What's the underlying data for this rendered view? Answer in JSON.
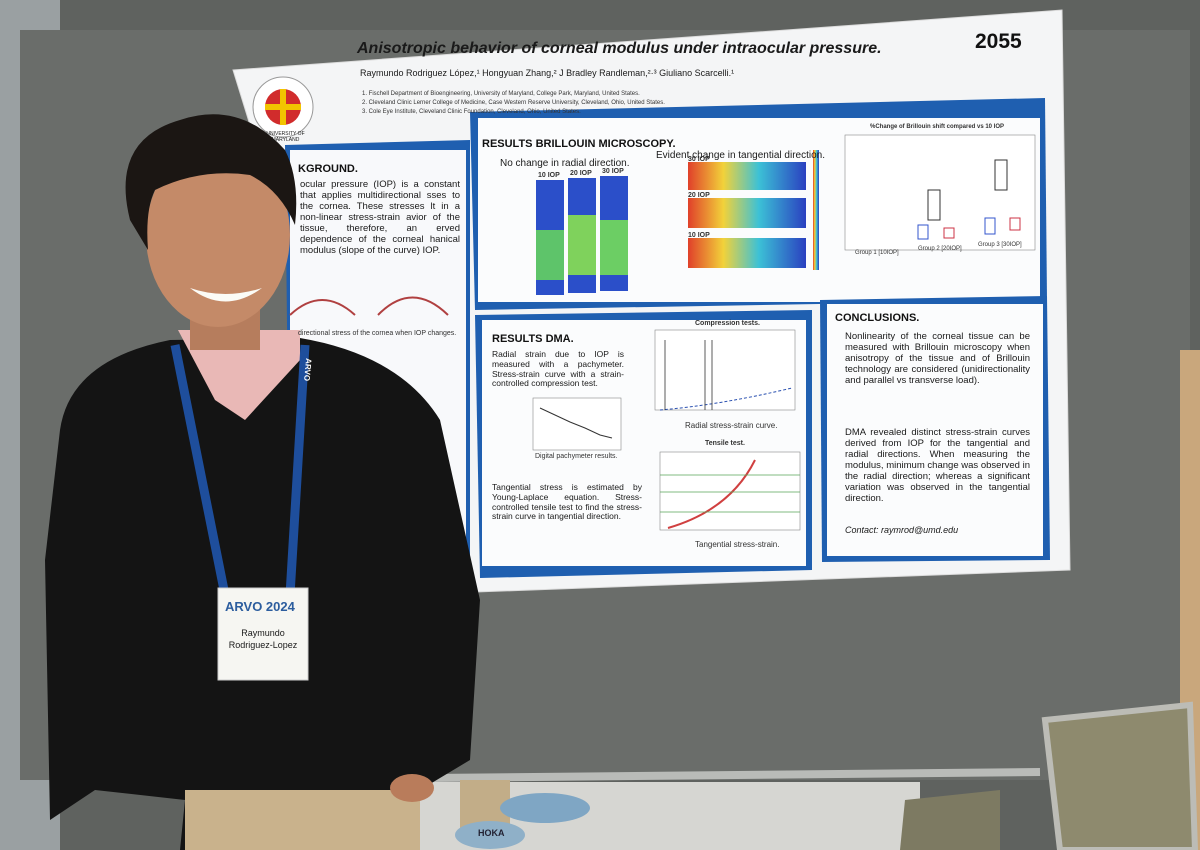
{
  "poster": {
    "number": "2055",
    "title": "Anisotropic behavior of corneal modulus under intraocular pressure.",
    "authors": "Raymundo Rodriguez López,¹ Hongyuan Zhang,² J Bradley Randleman,²·³ Giuliano Scarcelli.¹",
    "affiliations": [
      "1.  Fischell Department of Bioengineering, University of Maryland, College Park, Maryland, United States.",
      "2.  Cleveland Clinic Lerner College of Medicine, Case Western Reserve University, Cleveland, Ohio, United States.",
      "3.  Cole Eye Institute, Cleveland Clinic Foundation, Cleveland, Ohio, United States."
    ],
    "logo": "UNIVERSITY OF MARYLAND",
    "background": {
      "heading": "KGROUND.",
      "text": "ocular pressure (IOP) is a constant that applies multidirectional sses to the cornea. These stresses lt in a non-linear stress-strain avior of the tissue, therefore, an erved dependence of the corneal hanical modulus (slope of the curve) IOP.",
      "caption": "directional stress of the cornea when IOP changes."
    },
    "brillouin": {
      "heading": "RESULTS BRILLOUIN MICROSCOPY.",
      "radial": "No change in radial direction.",
      "tangential": "Evident change in tangential direction.",
      "iop_labels": [
        "10 IOP",
        "20 IOP",
        "30 IOP"
      ],
      "chart_title": "%Change of Brillouin shift compared vs 10 IOP",
      "groups": [
        "Group 1 [10IOP]",
        "Group 2 [20IOP]",
        "Group 3 [30IOP]"
      ]
    },
    "dma": {
      "heading": "RESULTS DMA.",
      "bullet1": "Radial strain due to IOP is measured with a pachymeter. Stress-strain curve with a strain-controlled compression test.",
      "pachymeter": "Digital pachymeter results.",
      "compression": "Compression tests.",
      "radial_curve": "Radial stress-strain curve.",
      "tensile": "Tensile test.",
      "tangential_curve": "Tangential stress-strain.",
      "bullet2": "Tangential stress is estimated by Young-Laplace equation. Stress-controlled tensile test to find the stress-strain curve in tangential direction."
    },
    "conclusions": {
      "heading": "CONCLUSIONS.",
      "bullets": [
        "Nonlinearity of the corneal tissue can be measured with Brillouin microscopy when anisotropy of the tissue and of Brillouin technology are considered (unidirectionality and parallel vs transverse load).",
        "DMA revealed distinct stress-strain curves derived from IOP for the tangential and radial directions. When measuring the modulus, minimum change was observed in the radial direction; whereas a significant variation was observed in the tangential direction."
      ],
      "contact": "Contact: raymrod@umd.edu"
    }
  },
  "badge": {
    "event": "ARVO 2024",
    "first_name": "Raymundo",
    "last_name": "Rodriguez-Lopez",
    "lanyard": "ARVO"
  },
  "shoe": "HOKA"
}
